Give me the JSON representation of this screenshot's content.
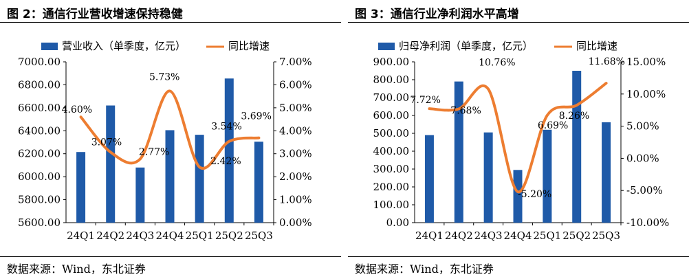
{
  "charts": [
    {
      "fig_title": "图 2：通信行业营收增速保持稳健",
      "source": "数据来源：Wind，东北证券",
      "left_tick_labels": [
        "7000.00",
        "6800.00",
        "6600.00",
        "6400.00",
        "6200.00",
        "6000.00",
        "5800.00",
        "5600.00"
      ],
      "right_tick_labels": [
        "7.00%",
        "6.00%",
        "5.00%",
        "4.00%",
        "3.00%",
        "2.00%",
        "1.00%",
        "0.00%"
      ],
      "data_labels": [
        "4.60%",
        "3.07%",
        "2.77%",
        "5.73%",
        "2.42%",
        "3.54%",
        "3.69%"
      ]
    },
    {
      "fig_title": "图 3：通信行业净利润水平高增",
      "source": "数据来源：Wind，东北证券",
      "left_tick_labels": [
        "900.00",
        "800.00",
        "700.00",
        "600.00",
        "500.00",
        "400.00",
        "300.00",
        "200.00",
        "100.00",
        "0.00"
      ],
      "right_tick_labels": [
        "15.00%",
        "10.00%",
        "5.00%",
        "0.00%",
        "-5.00%",
        "-10.00%"
      ],
      "data_labels": [
        "7.72%",
        "7.68%",
        "10.76%",
        "-5.20%",
        "6.69%",
        "8.26%",
        "11.68%"
      ]
    }
  ],
  "chart_data": [
    {
      "type": "bar",
      "title": "图 2：通信行业营收增速保持稳健",
      "categories": [
        "24Q1",
        "24Q2",
        "24Q3",
        "24Q4",
        "25Q1",
        "25Q2",
        "25Q3"
      ],
      "series": [
        {
          "name": "营业收入（单季度，亿元）",
          "type": "bar",
          "axis": "left",
          "values": [
            6215,
            6620,
            6080,
            6405,
            6365,
            6855,
            6305
          ],
          "color": "#1f5aa8"
        },
        {
          "name": "同比增速",
          "type": "line",
          "axis": "right",
          "values": [
            4.6,
            3.07,
            2.77,
            5.73,
            2.42,
            3.54,
            3.69
          ],
          "color": "#ed7d31"
        }
      ],
      "ylim_left": [
        5600,
        7000
      ],
      "ylim_right": [
        0,
        7
      ],
      "legend": "top"
    },
    {
      "type": "bar",
      "title": "图 3：通信行业净利润水平高增",
      "categories": [
        "24Q1",
        "24Q2",
        "24Q3",
        "24Q4",
        "25Q1",
        "25Q2",
        "25Q3"
      ],
      "series": [
        {
          "name": "归母净利润（单季度，亿元）",
          "type": "bar",
          "axis": "left",
          "values": [
            490,
            790,
            505,
            295,
            520,
            850,
            562
          ],
          "color": "#1f5aa8"
        },
        {
          "name": "同比增速",
          "type": "line",
          "axis": "right",
          "values": [
            7.72,
            7.68,
            10.76,
            -5.2,
            6.69,
            8.26,
            11.68
          ],
          "color": "#ed7d31"
        }
      ],
      "ylim_left": [
        0,
        900
      ],
      "ylim_right": [
        -10,
        15
      ],
      "legend": "top"
    }
  ]
}
